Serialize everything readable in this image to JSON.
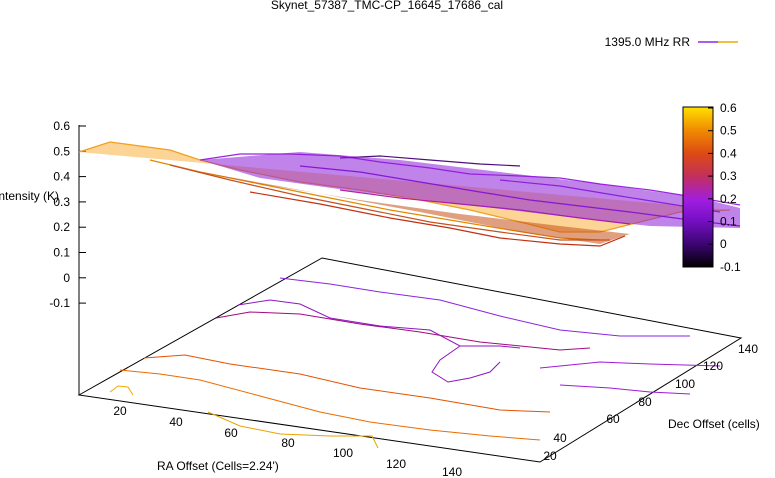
{
  "chart_data": {
    "type": "surface3d",
    "title": "Skynet_57387_TMC-CP_16645_17686_cal",
    "legend": {
      "label": "1395.0 MHz RR",
      "position": "top-right",
      "line_colors": [
        "#8a2be2",
        "#f2a900"
      ]
    },
    "zlabel": "Intensity (K)",
    "xlabel": "RA Offset (Cells=2.24')",
    "ylabel": "Dec Offset (cells)",
    "z_ticks": [
      "0.6",
      "0.5",
      "0.4",
      "0.3",
      "0.2",
      "0.1",
      "0",
      "-0.1"
    ],
    "x_ticks": [
      "20",
      "40",
      "60",
      "80",
      "100",
      "120",
      "140"
    ],
    "y_ticks": [
      "20",
      "40",
      "60",
      "80",
      "100",
      "120",
      "140"
    ],
    "zlim": [
      -0.1,
      0.6
    ],
    "colorbar": {
      "ticks": [
        "0.6",
        "0.5",
        "0.4",
        "0.3",
        "0.2",
        "0.1",
        "0",
        "-0.1"
      ],
      "range": [
        -0.1,
        0.6
      ],
      "palette": [
        "#000000",
        "#3a0570",
        "#7a10c8",
        "#a11ee0",
        "#c3305a",
        "#dd4a14",
        "#f08d00",
        "#ffe100"
      ]
    },
    "grid": false
  }
}
